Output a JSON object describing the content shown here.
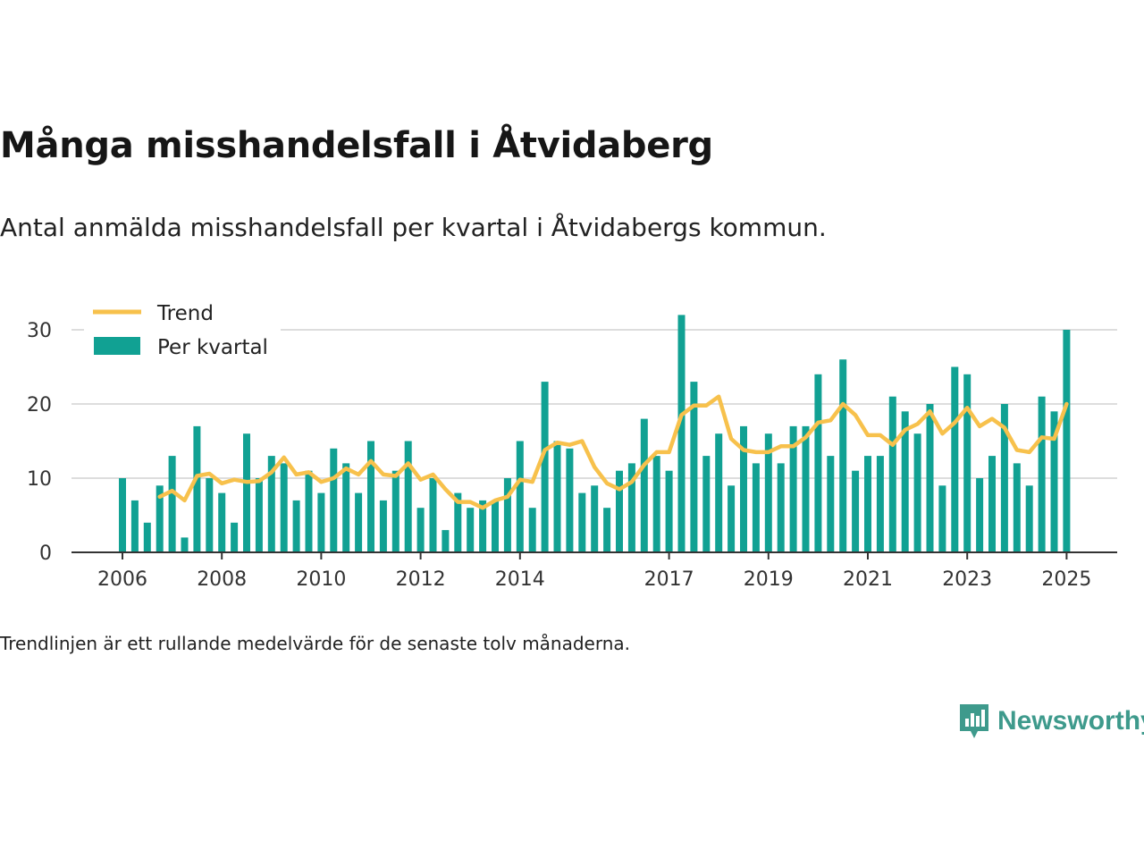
{
  "title": "Många misshandelsfall i Åtvidaberg",
  "subtitle": "Antal anmälda misshandelsfall per kvartal i Åtvidabergs kommun.",
  "footnote": "Trendlinjen är ett rullande medelvärde för de senaste tolv månaderna.",
  "brand": {
    "name": "Newsworthy",
    "icon": "newsworthy-logo-icon",
    "color": "#3e9a8c"
  },
  "chart_data": {
    "type": "bar",
    "ylim": [
      0,
      30
    ],
    "yticks": [
      "0",
      "10",
      "20",
      "30"
    ],
    "xticks": [
      "2006",
      "2008",
      "2010",
      "2012",
      "2014",
      "2017",
      "2019",
      "2021",
      "2023",
      "2025"
    ],
    "grid": true,
    "legend_position": "top-left",
    "colors": {
      "bars": "#11a193",
      "trend": "#f7c14c",
      "grid": "#dddddd",
      "axis": "#333333"
    },
    "categories": [
      "2006 Q1",
      "2006 Q2",
      "2006 Q3",
      "2006 Q4",
      "2007 Q1",
      "2007 Q2",
      "2007 Q3",
      "2007 Q4",
      "2008 Q1",
      "2008 Q2",
      "2008 Q3",
      "2008 Q4",
      "2009 Q1",
      "2009 Q2",
      "2009 Q3",
      "2009 Q4",
      "2010 Q1",
      "2010 Q2",
      "2010 Q3",
      "2010 Q4",
      "2011 Q1",
      "2011 Q2",
      "2011 Q3",
      "2011 Q4",
      "2012 Q1",
      "2012 Q2",
      "2012 Q3",
      "2012 Q4",
      "2013 Q1",
      "2013 Q2",
      "2013 Q3",
      "2013 Q4",
      "2014 Q1",
      "2014 Q2",
      "2014 Q3",
      "2014 Q4",
      "2015 Q1",
      "2015 Q2",
      "2015 Q3",
      "2015 Q4",
      "2016 Q1",
      "2016 Q2",
      "2016 Q3",
      "2016 Q4",
      "2017 Q1",
      "2017 Q2",
      "2017 Q3",
      "2017 Q4",
      "2018 Q1",
      "2018 Q2",
      "2018 Q3",
      "2018 Q4",
      "2019 Q1",
      "2019 Q2",
      "2019 Q3",
      "2019 Q4",
      "2020 Q1",
      "2020 Q2",
      "2020 Q3",
      "2020 Q4",
      "2021 Q1",
      "2021 Q2",
      "2021 Q3",
      "2021 Q4",
      "2022 Q1",
      "2022 Q2",
      "2022 Q3",
      "2022 Q4",
      "2023 Q1",
      "2023 Q2",
      "2023 Q3",
      "2023 Q4",
      "2024 Q1",
      "2024 Q2",
      "2024 Q3",
      "2024 Q4",
      "2025 Q1"
    ],
    "series": [
      {
        "name": "Per kvartal",
        "type": "bar",
        "values": [
          10,
          7,
          4,
          9,
          13,
          2,
          17,
          10,
          8,
          4,
          16,
          10,
          13,
          12,
          7,
          11,
          8,
          14,
          12,
          8,
          15,
          7,
          11,
          15,
          6,
          10,
          3,
          8,
          6,
          7,
          7,
          10,
          15,
          6,
          23,
          15,
          14,
          8,
          9,
          6,
          11,
          12,
          18,
          13,
          11,
          32,
          23,
          13,
          16,
          9,
          17,
          12,
          16,
          12,
          17,
          17,
          24,
          13,
          26,
          11,
          13,
          13,
          21,
          19,
          16,
          20,
          9,
          25,
          24,
          10,
          13,
          20,
          12,
          9,
          21,
          19,
          30
        ]
      },
      {
        "name": "Trend",
        "type": "line",
        "values": [
          null,
          null,
          null,
          7.5,
          8.3,
          7.0,
          10.3,
          10.6,
          9.3,
          9.8,
          9.5,
          9.6,
          10.8,
          12.8,
          10.5,
          10.8,
          9.5,
          10.0,
          11.3,
          10.5,
          12.3,
          10.5,
          10.3,
          12.0,
          9.8,
          10.5,
          8.5,
          6.8,
          6.8,
          6.0,
          7.0,
          7.5,
          9.8,
          9.5,
          13.8,
          14.8,
          14.5,
          15.0,
          11.5,
          9.3,
          8.5,
          9.5,
          11.8,
          13.5,
          13.5,
          18.5,
          19.8,
          19.8,
          21.0,
          15.3,
          13.8,
          13.5,
          13.5,
          14.3,
          14.3,
          15.5,
          17.5,
          17.8,
          20.0,
          18.5,
          15.8,
          15.8,
          14.5,
          16.5,
          17.3,
          19.0,
          16.0,
          17.5,
          19.5,
          17.0,
          18.0,
          16.8,
          13.8,
          13.5,
          15.5,
          15.3,
          20.0
        ]
      }
    ]
  }
}
